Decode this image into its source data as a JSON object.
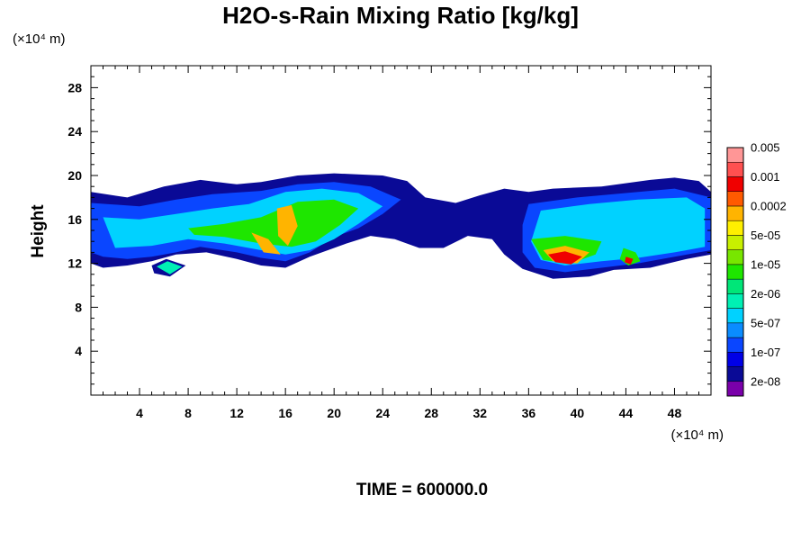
{
  "chart_data": {
    "type": "heatmap",
    "title": "H2O-s-Rain Mixing Ratio [kg/kg]",
    "xlabel": "",
    "ylabel": "Height",
    "x_unit": "(×10⁴ m)",
    "y_unit": "(×10⁴ m)",
    "xlim": [
      0,
      51
    ],
    "ylim": [
      0,
      30
    ],
    "x_ticks": [
      4,
      8,
      12,
      16,
      20,
      24,
      28,
      32,
      36,
      40,
      44,
      48
    ],
    "y_ticks": [
      4,
      8,
      12,
      16,
      20,
      24,
      28
    ],
    "time_label": "TIME = 600000.0",
    "colorbar": {
      "colors": [
        "#7a00aa",
        "#0a0a96",
        "#0000e6",
        "#0a46ff",
        "#0a8cff",
        "#00d2ff",
        "#00f0b4",
        "#00e678",
        "#1ee600",
        "#78e600",
        "#c8f000",
        "#fff000",
        "#ffb400",
        "#ff5a00",
        "#f00000",
        "#ff5050",
        "#ff9696"
      ],
      "tick_labels": [
        "2e-08",
        "1e-07",
        "5e-07",
        "2e-06",
        "1e-05",
        "5e-05",
        "0.0002",
        "0.001",
        "0.005"
      ]
    },
    "features": [
      {
        "level": 1,
        "points": [
          [
            0,
            18.5
          ],
          [
            3,
            18
          ],
          [
            6,
            19
          ],
          [
            9,
            19.6
          ],
          [
            12,
            19.2
          ],
          [
            14,
            19.4
          ],
          [
            17,
            20
          ],
          [
            20,
            20.2
          ],
          [
            24,
            20
          ],
          [
            26,
            19.5
          ],
          [
            27.5,
            18
          ],
          [
            30,
            17.5
          ],
          [
            32,
            18.2
          ],
          [
            34,
            18.8
          ],
          [
            36,
            18.5
          ],
          [
            38,
            18.8
          ],
          [
            42,
            19
          ],
          [
            46,
            19.6
          ],
          [
            48,
            19.8
          ],
          [
            50,
            19.5
          ],
          [
            51,
            18.5
          ],
          [
            51,
            12.8
          ],
          [
            49,
            12.4
          ],
          [
            46,
            11.6
          ],
          [
            43,
            11.4
          ],
          [
            41,
            10.8
          ],
          [
            38,
            10.6
          ],
          [
            35.5,
            11.5
          ],
          [
            34,
            12.8
          ],
          [
            33,
            14.2
          ],
          [
            31,
            14.5
          ],
          [
            29,
            13.4
          ],
          [
            27,
            13.4
          ],
          [
            25,
            14.2
          ],
          [
            23,
            14.5
          ],
          [
            21,
            13.8
          ],
          [
            18,
            12.6
          ],
          [
            16,
            11.6
          ],
          [
            14,
            11.8
          ],
          [
            12,
            12.4
          ],
          [
            9.5,
            13
          ],
          [
            7,
            12.8
          ],
          [
            5,
            12.2
          ],
          [
            3,
            11.8
          ],
          [
            1,
            11.6
          ],
          [
            0,
            12
          ]
        ]
      },
      {
        "level": 1,
        "points": [
          [
            5,
            11.8
          ],
          [
            6.2,
            12.4
          ],
          [
            7.8,
            11.8
          ],
          [
            6.5,
            10.8
          ],
          [
            5.2,
            11.1
          ]
        ]
      },
      {
        "level": 3,
        "points": [
          [
            0,
            17.5
          ],
          [
            4,
            17.2
          ],
          [
            7,
            17.8
          ],
          [
            10,
            18.3
          ],
          [
            14,
            18.6
          ],
          [
            17,
            19.2
          ],
          [
            20,
            19.4
          ],
          [
            23,
            19
          ],
          [
            25.5,
            17.8
          ],
          [
            24,
            16.5
          ],
          [
            22,
            15.2
          ],
          [
            20,
            14.4
          ],
          [
            18,
            13
          ],
          [
            16,
            12.2
          ],
          [
            14,
            12.5
          ],
          [
            12,
            13
          ],
          [
            9,
            13.5
          ],
          [
            7,
            13
          ],
          [
            5,
            12.6
          ],
          [
            3,
            12.4
          ],
          [
            1,
            12.6
          ],
          [
            0,
            13
          ]
        ]
      },
      {
        "level": 3,
        "points": [
          [
            36,
            17.4
          ],
          [
            40,
            18
          ],
          [
            44,
            18.4
          ],
          [
            48,
            18.8
          ],
          [
            51,
            18
          ],
          [
            51,
            13.2
          ],
          [
            48,
            12.6
          ],
          [
            45,
            12
          ],
          [
            42,
            11.6
          ],
          [
            39,
            11.2
          ],
          [
            36.5,
            11.6
          ],
          [
            35.5,
            13
          ],
          [
            35.5,
            15.5
          ]
        ]
      },
      {
        "level": 5,
        "points": [
          [
            1,
            16.2
          ],
          [
            4,
            16
          ],
          [
            7,
            16.5
          ],
          [
            10,
            17
          ],
          [
            13,
            17.4
          ],
          [
            16,
            18.5
          ],
          [
            19,
            18.8
          ],
          [
            22,
            18.4
          ],
          [
            24,
            17.2
          ],
          [
            22,
            15.6
          ],
          [
            20,
            14.2
          ],
          [
            18,
            13.2
          ],
          [
            16,
            12.8
          ],
          [
            14,
            13.2
          ],
          [
            11,
            13.8
          ],
          [
            8,
            14.2
          ],
          [
            5,
            13.6
          ],
          [
            2,
            13.4
          ]
        ]
      },
      {
        "level": 5,
        "points": [
          [
            37,
            16.8
          ],
          [
            41,
            17.4
          ],
          [
            45,
            17.8
          ],
          [
            49,
            18
          ],
          [
            50.5,
            17
          ],
          [
            50.5,
            13.5
          ],
          [
            48,
            13
          ],
          [
            45,
            12.5
          ],
          [
            42,
            12.2
          ],
          [
            39,
            11.8
          ],
          [
            37,
            12.3
          ],
          [
            36.2,
            14
          ]
        ]
      },
      {
        "level": 6,
        "points": [
          [
            5.4,
            11.7
          ],
          [
            6.3,
            12.2
          ],
          [
            7.5,
            11.7
          ],
          [
            6.5,
            11
          ]
        ]
      },
      {
        "level": 8,
        "points": [
          [
            8,
            15.2
          ],
          [
            11,
            15.6
          ],
          [
            14,
            16.2
          ],
          [
            17,
            17.6
          ],
          [
            20,
            17.8
          ],
          [
            22,
            17
          ],
          [
            20.5,
            15.5
          ],
          [
            18.5,
            14
          ],
          [
            16.5,
            13.5
          ],
          [
            14,
            13.8
          ],
          [
            11,
            14.4
          ],
          [
            8.5,
            14.6
          ]
        ]
      },
      {
        "level": 8,
        "points": [
          [
            36.2,
            14.2
          ],
          [
            39,
            14.5
          ],
          [
            42,
            14
          ],
          [
            41.5,
            12.8
          ],
          [
            39.5,
            12
          ],
          [
            37.2,
            12.3
          ]
        ]
      },
      {
        "level": 8,
        "points": [
          [
            43.8,
            13.4
          ],
          [
            44.8,
            13
          ],
          [
            45.2,
            12.2
          ],
          [
            44.2,
            11.8
          ],
          [
            43.5,
            12.4
          ]
        ]
      },
      {
        "level": 12,
        "points": [
          [
            13.2,
            14.8
          ],
          [
            14.6,
            14.2
          ],
          [
            15.6,
            12.8
          ],
          [
            14.2,
            13
          ]
        ]
      },
      {
        "level": 12,
        "points": [
          [
            15.3,
            17
          ],
          [
            16.5,
            17.3
          ],
          [
            17,
            15.4
          ],
          [
            16.2,
            13.6
          ],
          [
            15.4,
            14.5
          ]
        ]
      },
      {
        "level": 12,
        "points": [
          [
            37.2,
            13.2
          ],
          [
            39,
            13.6
          ],
          [
            41,
            13
          ],
          [
            40,
            12
          ],
          [
            38,
            12.2
          ]
        ]
      },
      {
        "level": 14,
        "points": [
          [
            37.6,
            12.8
          ],
          [
            39,
            13.1
          ],
          [
            40.4,
            12.6
          ],
          [
            39.5,
            11.9
          ],
          [
            38.2,
            12.1
          ]
        ]
      },
      {
        "level": 14,
        "points": [
          [
            44,
            12.6
          ],
          [
            44.6,
            12.4
          ],
          [
            44.4,
            11.9
          ],
          [
            43.9,
            12.1
          ]
        ]
      }
    ]
  }
}
